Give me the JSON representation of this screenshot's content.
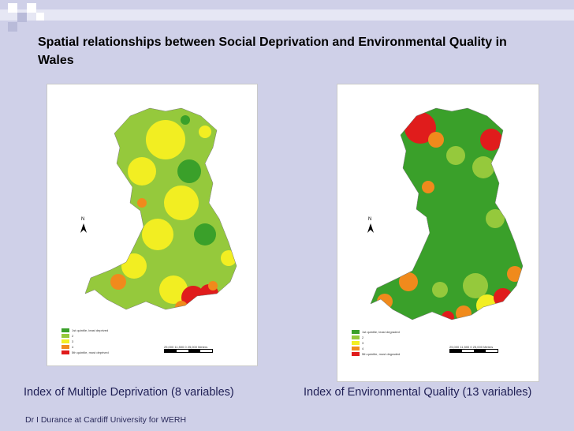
{
  "slide": {
    "title": "Spatial relationships between Social Deprivation and Environmental Quality in Wales",
    "footer": "Dr I Durance at Cardiff University for WERH",
    "colors": {
      "background": "#cfd0e8",
      "title": "#000000",
      "caption": "#1f1f55"
    }
  },
  "maps": [
    {
      "caption": "Index of Multiple Deprivation (8 variables)",
      "north_label": "N",
      "legend": [
        {
          "label": "1st quintile, least deprived",
          "color": "#3aa02a"
        },
        {
          "label": "2",
          "color": "#95c93c"
        },
        {
          "label": "3",
          "color": "#f2ee22"
        },
        {
          "label": "4",
          "color": "#f08a1c"
        },
        {
          "label": "5th quintile, most deprived",
          "color": "#e01c1c"
        }
      ],
      "scale_text": "25,000  11,500    0        25,000 Meters"
    },
    {
      "caption": "Index of Environmental Quality (13 variables)",
      "north_label": "N",
      "legend": [
        {
          "label": "1st quintile, least degraded",
          "color": "#3aa02a"
        },
        {
          "label": "2",
          "color": "#95c93c"
        },
        {
          "label": "3",
          "color": "#f2ee22"
        },
        {
          "label": "4",
          "color": "#f08a1c"
        },
        {
          "label": "5th quintile, most degraded",
          "color": "#e01c1c"
        }
      ],
      "scale_text": "25,000  11,500    0        25,000 Meters"
    }
  ]
}
